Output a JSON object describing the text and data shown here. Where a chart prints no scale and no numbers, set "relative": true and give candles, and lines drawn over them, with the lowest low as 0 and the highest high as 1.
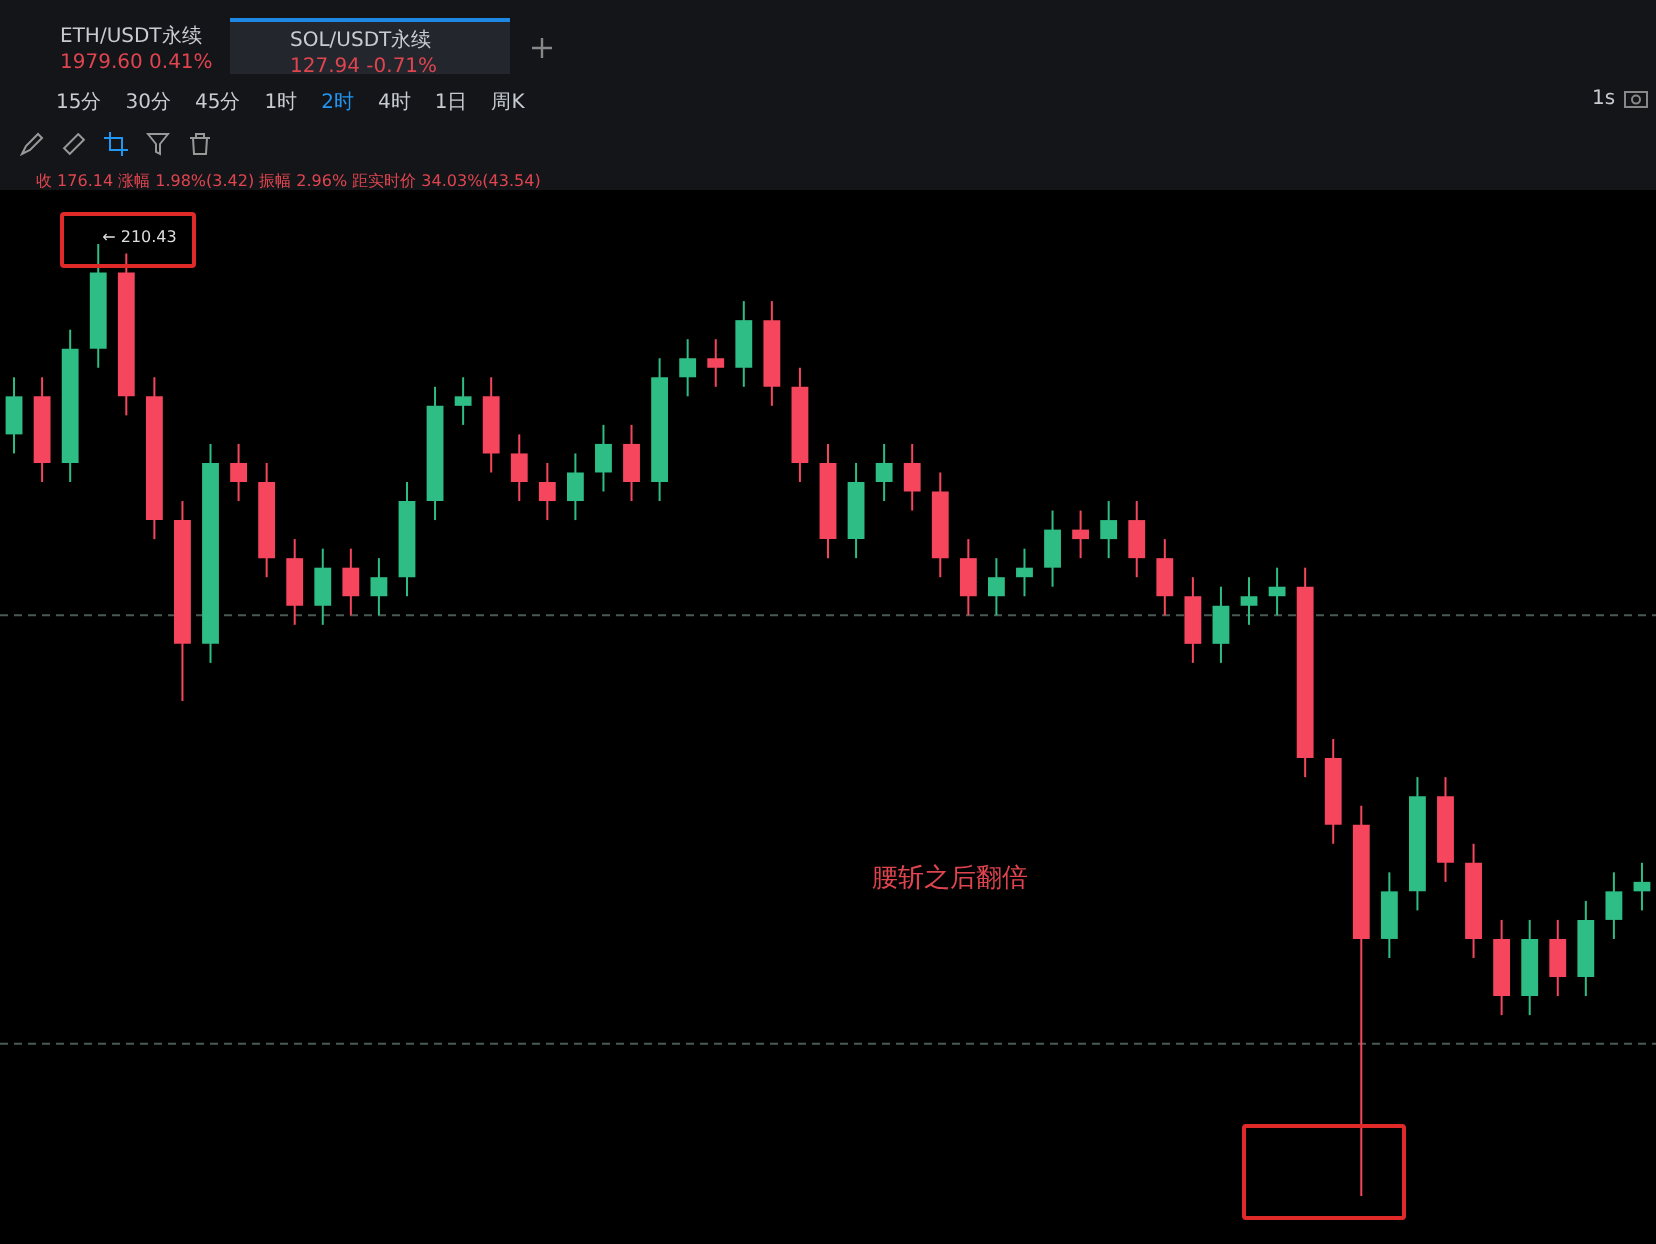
{
  "chart_data": {
    "type": "candlestick",
    "relative": true,
    "categories": [
      null,
      null,
      null,
      null,
      null,
      null,
      null,
      null,
      null,
      null,
      null,
      null,
      null,
      null,
      null,
      null,
      null,
      null,
      null,
      null,
      null,
      null,
      null,
      null,
      null,
      null,
      null,
      null,
      null,
      null,
      null,
      null,
      null,
      null,
      null,
      null,
      null,
      null,
      null,
      null,
      null,
      null,
      null,
      null,
      null,
      null,
      null,
      null,
      null,
      null,
      null,
      null,
      null,
      null,
      null,
      null,
      null,
      null,
      null
    ],
    "ohlc": [
      [
        0.8,
        0.86,
        0.78,
        0.84
      ],
      [
        0.84,
        0.86,
        0.75,
        0.77
      ],
      [
        0.77,
        0.91,
        0.75,
        0.89
      ],
      [
        0.89,
        1,
        0.87,
        0.97
      ],
      [
        0.97,
        0.99,
        0.82,
        0.84
      ],
      [
        0.84,
        0.86,
        0.69,
        0.71
      ],
      [
        0.71,
        0.73,
        0.52,
        0.58
      ],
      [
        0.58,
        0.79,
        0.56,
        0.77
      ],
      [
        0.77,
        0.79,
        0.73,
        0.75
      ],
      [
        0.75,
        0.77,
        0.65,
        0.67
      ],
      [
        0.67,
        0.69,
        0.6,
        0.62
      ],
      [
        0.62,
        0.68,
        0.6,
        0.66
      ],
      [
        0.66,
        0.68,
        0.61,
        0.63
      ],
      [
        0.63,
        0.67,
        0.61,
        0.65
      ],
      [
        0.65,
        0.75,
        0.63,
        0.73
      ],
      [
        0.73,
        0.85,
        0.71,
        0.83
      ],
      [
        0.83,
        0.86,
        0.81,
        0.84
      ],
      [
        0.84,
        0.86,
        0.76,
        0.78
      ],
      [
        0.78,
        0.8,
        0.73,
        0.75
      ],
      [
        0.75,
        0.77,
        0.71,
        0.73
      ],
      [
        0.73,
        0.78,
        0.71,
        0.76
      ],
      [
        0.76,
        0.81,
        0.74,
        0.79
      ],
      [
        0.79,
        0.81,
        0.73,
        0.75
      ],
      [
        0.75,
        0.88,
        0.73,
        0.86
      ],
      [
        0.86,
        0.9,
        0.84,
        0.88
      ],
      [
        0.88,
        0.9,
        0.85,
        0.87
      ],
      [
        0.87,
        0.94,
        0.85,
        0.92
      ],
      [
        0.92,
        0.94,
        0.83,
        0.85
      ],
      [
        0.85,
        0.87,
        0.75,
        0.77
      ],
      [
        0.77,
        0.79,
        0.67,
        0.69
      ],
      [
        0.69,
        0.77,
        0.67,
        0.75
      ],
      [
        0.75,
        0.79,
        0.73,
        0.77
      ],
      [
        0.77,
        0.79,
        0.72,
        0.74
      ],
      [
        0.74,
        0.76,
        0.65,
        0.67
      ],
      [
        0.67,
        0.69,
        0.61,
        0.63
      ],
      [
        0.63,
        0.67,
        0.61,
        0.65
      ],
      [
        0.65,
        0.68,
        0.63,
        0.66
      ],
      [
        0.66,
        0.72,
        0.64,
        0.7
      ],
      [
        0.7,
        0.72,
        0.67,
        0.69
      ],
      [
        0.69,
        0.73,
        0.67,
        0.71
      ],
      [
        0.71,
        0.73,
        0.65,
        0.67
      ],
      [
        0.67,
        0.69,
        0.61,
        0.63
      ],
      [
        0.63,
        0.65,
        0.56,
        0.58
      ],
      [
        0.58,
        0.64,
        0.56,
        0.62
      ],
      [
        0.62,
        0.65,
        0.6,
        0.63
      ],
      [
        0.63,
        0.66,
        0.61,
        0.64
      ],
      [
        0.64,
        0.66,
        0.44,
        0.46
      ],
      [
        0.46,
        0.48,
        0.37,
        0.39
      ],
      [
        0.39,
        0.41,
        0,
        0.27
      ],
      [
        0.27,
        0.34,
        0.25,
        0.32
      ],
      [
        0.32,
        0.44,
        0.3,
        0.42
      ],
      [
        0.42,
        0.44,
        0.33,
        0.35
      ],
      [
        0.35,
        0.37,
        0.25,
        0.27
      ],
      [
        0.27,
        0.29,
        0.19,
        0.21
      ],
      [
        0.21,
        0.29,
        0.19,
        0.27
      ],
      [
        0.27,
        0.29,
        0.21,
        0.23
      ],
      [
        0.23,
        0.31,
        0.21,
        0.29
      ],
      [
        0.29,
        0.34,
        0.27,
        0.32
      ],
      [
        0.32,
        0.35,
        0.3,
        0.33
      ]
    ],
    "colors": [
      "#2ebd85",
      "#f6465d",
      "#2ebd85",
      "#2ebd85",
      "#f6465d",
      "#f6465d",
      "#f6465d",
      "#2ebd85",
      "#f6465d",
      "#f6465d",
      "#f6465d",
      "#2ebd85",
      "#f6465d",
      "#2ebd85",
      "#2ebd85",
      "#2ebd85",
      "#2ebd85",
      "#f6465d",
      "#f6465d",
      "#f6465d",
      "#2ebd85",
      "#2ebd85",
      "#f6465d",
      "#2ebd85",
      "#2ebd85",
      "#f6465d",
      "#2ebd85",
      "#f6465d",
      "#f6465d",
      "#f6465d",
      "#2ebd85",
      "#2ebd85",
      "#f6465d",
      "#f6465d",
      "#f6465d",
      "#2ebd85",
      "#2ebd85",
      "#2ebd85",
      "#f6465d",
      "#2ebd85",
      "#f6465d",
      "#f6465d",
      "#f6465d",
      "#2ebd85",
      "#2ebd85",
      "#2ebd85",
      "#f6465d",
      "#f6465d",
      "#f6465d",
      "#2ebd85",
      "#2ebd85",
      "#f6465d",
      "#f6465d",
      "#f6465d",
      "#2ebd85",
      "#f6465d",
      "#2ebd85",
      "#2ebd85",
      "#2ebd85"
    ],
    "ref_lines": [
      {
        "axis": "y",
        "value": 0.61,
        "color": "#4a5a55",
        "line_style": "dashed"
      },
      {
        "axis": "y",
        "value": 0.16,
        "color": "#4a5a55",
        "line_style": "dashed"
      }
    ],
    "annotations": [
      "ETH/USDT永续",
      "1979.60",
      "0.41%",
      "SOL/USDT永续",
      "127.94",
      "-0.71%",
      "15分",
      "30分",
      "45分",
      "1时",
      "2时",
      "4时",
      "1日",
      "周K",
      "1s",
      "收 176.14 涨幅 1.98%(3.42) 振幅 2.96% 距实时价 34.03%(43.54)",
      "← 210.43",
      "腰斩之后翻倍"
    ]
  }
}
